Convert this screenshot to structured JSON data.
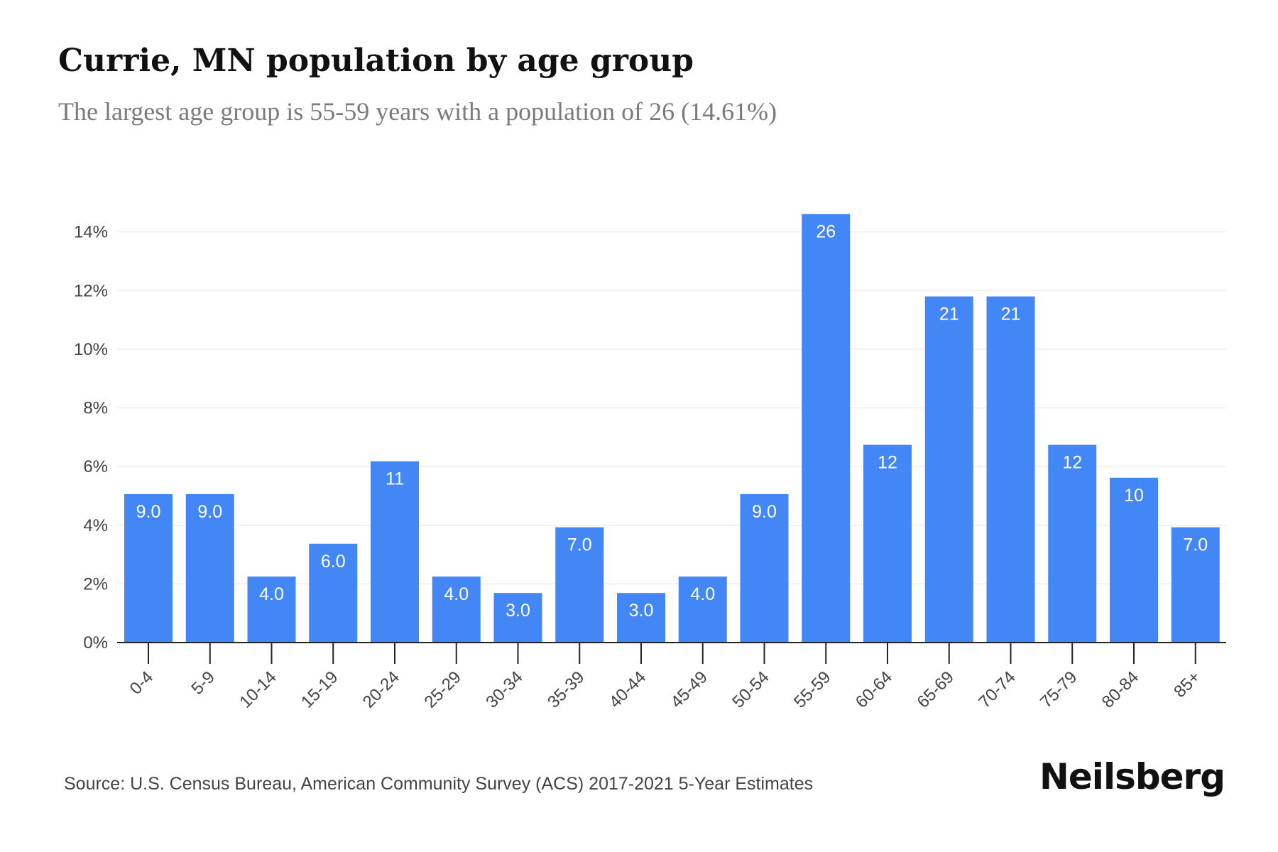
{
  "header": {
    "title": "Currie, MN population by age group",
    "subtitle": "The largest age group is 55-59 years with a population of 26 (14.61%)"
  },
  "footer": {
    "source": "Source: U.S. Census Bureau, American Community Survey (ACS) 2017-2021 5-Year Estimates",
    "brand": "Neilsberg"
  },
  "colors": {
    "bar": "#4287f5",
    "bar_label": "#ffffff",
    "grid": "#eeeeee",
    "axis": "#222222",
    "tick_text": "#444444"
  },
  "chart_data": {
    "type": "bar",
    "title": "Currie, MN population by age group",
    "subtitle": "The largest age group is 55-59 years with a population of 26 (14.61%)",
    "categories": [
      "0-4",
      "5-9",
      "10-14",
      "15-19",
      "20-24",
      "25-29",
      "30-34",
      "35-39",
      "40-44",
      "45-49",
      "50-54",
      "55-59",
      "60-64",
      "65-69",
      "70-74",
      "75-79",
      "80-84",
      "85+"
    ],
    "values": [
      5.06,
      5.06,
      2.25,
      3.37,
      6.18,
      2.25,
      1.69,
      3.93,
      1.69,
      2.25,
      5.06,
      14.61,
      6.74,
      11.8,
      11.8,
      6.74,
      5.62,
      3.93
    ],
    "data_labels": [
      "9.0",
      "9.0",
      "4.0",
      "6.0",
      "11",
      "4.0",
      "3.0",
      "7.0",
      "3.0",
      "4.0",
      "9.0",
      "26",
      "12",
      "21",
      "21",
      "12",
      "10",
      "7.0"
    ],
    "y_ticks": [
      0,
      2,
      4,
      6,
      8,
      10,
      12,
      14
    ],
    "y_tick_labels": [
      "0%",
      "2%",
      "4%",
      "6%",
      "8%",
      "10%",
      "12%",
      "14%"
    ],
    "ylim": [
      0,
      16
    ],
    "xlabel": "",
    "ylabel": "",
    "grid": true,
    "legend": "none"
  }
}
